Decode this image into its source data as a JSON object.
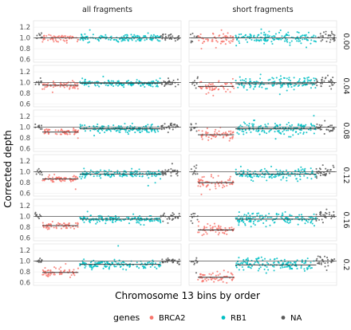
{
  "chart_data": {
    "type": "scatter",
    "layout": "facet-grid",
    "columns": [
      "all fragments",
      "short fragments"
    ],
    "rows": [
      "0.00",
      "0.04",
      "0.08",
      "0.12",
      "0.16",
      "0.2"
    ],
    "xlabel": "Chromosome 13 bins by order",
    "ylabel": "Corrected depth",
    "yticks": [
      "0.6",
      "0.8",
      "1.0",
      "1.2"
    ],
    "ylim": [
      0.55,
      1.32
    ],
    "reference_line": 1.0,
    "legend_title": "genes",
    "legend_position": "bottom",
    "series": [
      {
        "name": "BRCA2",
        "color": "#F8766D"
      },
      {
        "name": "RB1",
        "color": "#00BFC4"
      },
      {
        "name": "NA",
        "color": "#595959"
      }
    ],
    "panels": [
      {
        "column": "all fragments",
        "row": "0.00",
        "BRCA2_mean": 1.0,
        "RB1_mean": 1.0,
        "NA_mean": 1.0
      },
      {
        "column": "short fragments",
        "row": "0.00",
        "BRCA2_mean": 1.0,
        "RB1_mean": 1.0,
        "NA_mean": 1.0
      },
      {
        "column": "all fragments",
        "row": "0.04",
        "BRCA2_mean": 0.95,
        "RB1_mean": 0.99,
        "NA_mean": 1.0
      },
      {
        "column": "short fragments",
        "row": "0.04",
        "BRCA2_mean": 0.93,
        "RB1_mean": 0.98,
        "NA_mean": 1.0
      },
      {
        "column": "all fragments",
        "row": "0.08",
        "BRCA2_mean": 0.91,
        "RB1_mean": 0.97,
        "NA_mean": 1.0
      },
      {
        "column": "short fragments",
        "row": "0.08",
        "BRCA2_mean": 0.86,
        "RB1_mean": 0.97,
        "NA_mean": 1.0
      },
      {
        "column": "all fragments",
        "row": "0.12",
        "BRCA2_mean": 0.87,
        "RB1_mean": 0.96,
        "NA_mean": 1.0
      },
      {
        "column": "short fragments",
        "row": "0.12",
        "BRCA2_mean": 0.8,
        "RB1_mean": 0.96,
        "NA_mean": 1.0
      },
      {
        "column": "all fragments",
        "row": "0.16",
        "BRCA2_mean": 0.83,
        "RB1_mean": 0.95,
        "NA_mean": 1.0
      },
      {
        "column": "short fragments",
        "row": "0.16",
        "BRCA2_mean": 0.75,
        "RB1_mean": 0.95,
        "NA_mean": 1.0
      },
      {
        "column": "all fragments",
        "row": "0.2",
        "BRCA2_mean": 0.79,
        "RB1_mean": 0.94,
        "NA_mean": 1.0
      },
      {
        "column": "short fragments",
        "row": "0.2",
        "BRCA2_mean": 0.7,
        "RB1_mean": 0.93,
        "NA_mean": 1.0
      }
    ]
  }
}
